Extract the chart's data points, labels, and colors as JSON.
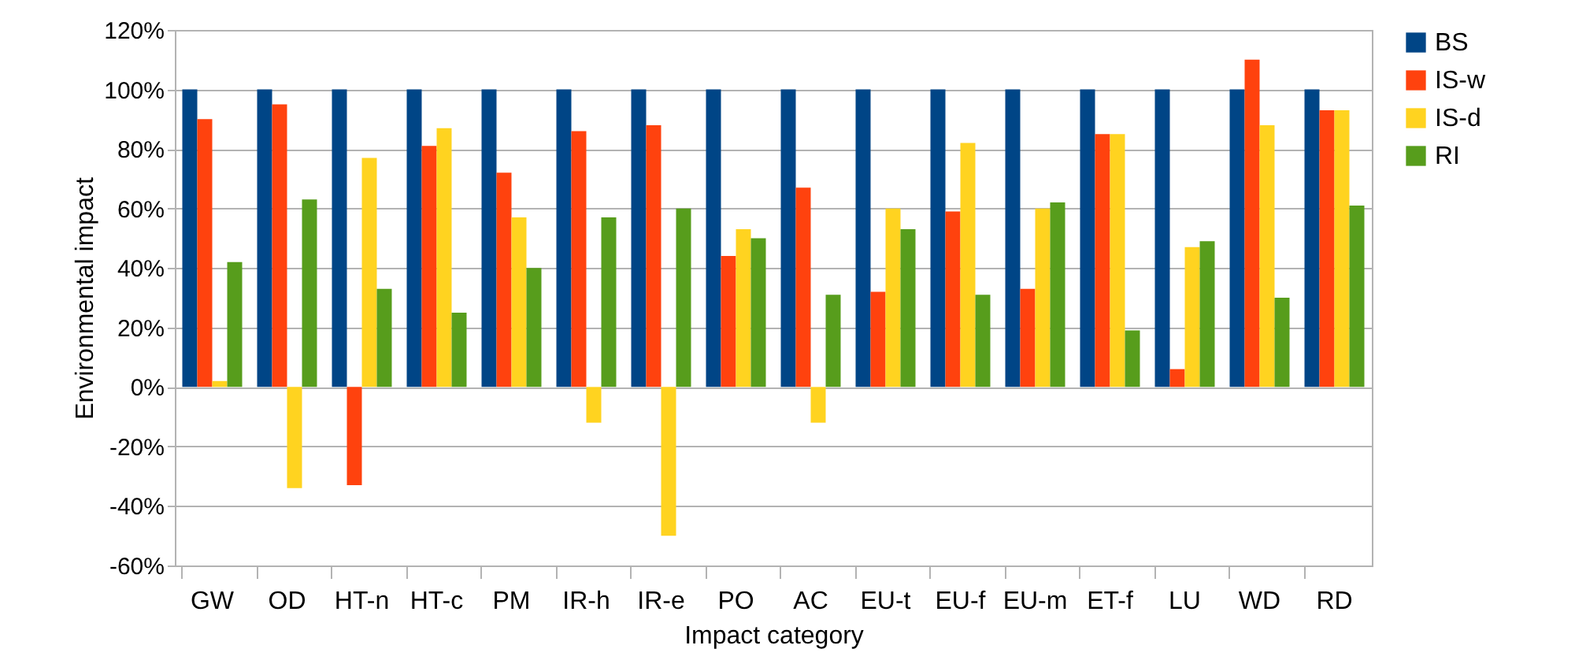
{
  "chart_data": {
    "type": "bar",
    "xlabel": "Impact category",
    "ylabel": "Environmental impact",
    "categories": [
      "GW",
      "OD",
      "HT-n",
      "HT-c",
      "PM",
      "IR-h",
      "IR-e",
      "PO",
      "AC",
      "EU-t",
      "EU-f",
      "EU-m",
      "ET-f",
      "LU",
      "WD",
      "RD"
    ],
    "series": [
      {
        "name": "BS",
        "color": "#004586",
        "values": [
          100,
          100,
          100,
          100,
          100,
          100,
          100,
          100,
          100,
          100,
          100,
          100,
          100,
          100,
          100,
          100
        ]
      },
      {
        "name": "IS-w",
        "color": "#ff420e",
        "values": [
          90,
          95,
          -33,
          81,
          72,
          86,
          88,
          44,
          67,
          32,
          59,
          33,
          85,
          6,
          110,
          93
        ]
      },
      {
        "name": "IS-d",
        "color": "#ffd320",
        "values": [
          2,
          -34,
          77,
          87,
          57,
          -12,
          -50,
          53,
          -12,
          60,
          82,
          60,
          85,
          47,
          88,
          93
        ]
      },
      {
        "name": "RI",
        "color": "#579d1c",
        "values": [
          42,
          63,
          33,
          25,
          40,
          57,
          60,
          50,
          31,
          53,
          31,
          62,
          19,
          49,
          30,
          61
        ]
      }
    ],
    "ylim": [
      -60,
      120
    ],
    "yticks": [
      {
        "value": -60,
        "label": "-60%"
      },
      {
        "value": -40,
        "label": "-40%"
      },
      {
        "value": -20,
        "label": "-20%"
      },
      {
        "value": 0,
        "label": "0%"
      },
      {
        "value": 20,
        "label": "20%"
      },
      {
        "value": 40,
        "label": "40%"
      },
      {
        "value": 60,
        "label": "60%"
      },
      {
        "value": 80,
        "label": "80%"
      },
      {
        "value": 100,
        "label": "100%"
      },
      {
        "value": 120,
        "label": "120%"
      }
    ],
    "grid": "y",
    "legend": "right"
  }
}
